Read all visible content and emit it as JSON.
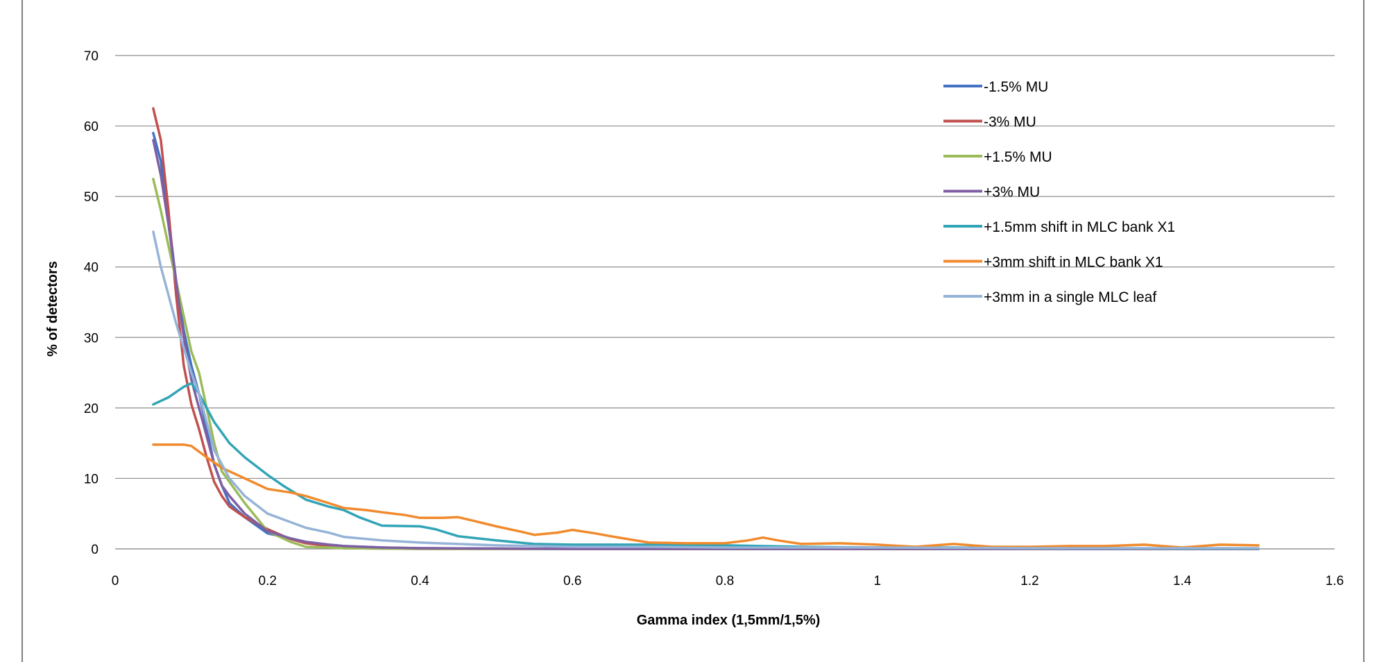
{
  "chart_data": {
    "type": "line",
    "title": "",
    "xlabel": "Gamma index (1,5mm/1,5%)",
    "ylabel": "% of detectors",
    "xlim": [
      0,
      1.6
    ],
    "ylim": [
      0,
      70
    ],
    "xticks": [
      0,
      0.2,
      0.4,
      0.6,
      0.8,
      1,
      1.2,
      1.4,
      1.6
    ],
    "yticks": [
      0,
      10,
      20,
      30,
      40,
      50,
      60,
      70
    ],
    "grid": "horizontal",
    "legend_position": "top-right",
    "series": [
      {
        "name": "-1.5% MU",
        "color": "#4472c4",
        "x": [
          0.05,
          0.06,
          0.07,
          0.08,
          0.09,
          0.1,
          0.11,
          0.12,
          0.13,
          0.14,
          0.15,
          0.17,
          0.2,
          0.23,
          0.25,
          0.28,
          0.3,
          0.35,
          0.4,
          0.5,
          0.6,
          0.8,
          1.0,
          1.2,
          1.5
        ],
        "y": [
          59,
          55,
          47,
          38,
          31,
          26,
          22,
          17,
          12,
          9,
          6.5,
          4.5,
          2.2,
          1.5,
          1.0,
          0.6,
          0.4,
          0.2,
          0.1,
          0.05,
          0,
          0,
          0,
          0,
          0
        ]
      },
      {
        "name": "-3% MU",
        "color": "#c0504d",
        "x": [
          0.05,
          0.06,
          0.07,
          0.08,
          0.09,
          0.1,
          0.11,
          0.12,
          0.13,
          0.14,
          0.15,
          0.17,
          0.2,
          0.23,
          0.25,
          0.28,
          0.3,
          0.35,
          0.4,
          0.5,
          0.6,
          0.8,
          1.0,
          1.2,
          1.5
        ],
        "y": [
          62.5,
          58,
          48,
          36,
          26,
          20.5,
          17,
          13,
          9.5,
          7.5,
          6,
          4.5,
          2.8,
          1.4,
          0.8,
          0.4,
          0.1,
          0.05,
          0,
          0,
          0,
          0,
          0,
          0,
          0
        ]
      },
      {
        "name": "+1.5% MU",
        "color": "#9bbb59",
        "x": [
          0.05,
          0.06,
          0.07,
          0.08,
          0.09,
          0.1,
          0.11,
          0.12,
          0.13,
          0.14,
          0.15,
          0.17,
          0.2,
          0.23,
          0.25,
          0.28,
          0.3,
          0.35,
          0.4,
          0.5,
          0.6,
          0.8,
          1.0,
          1.2,
          1.5
        ],
        "y": [
          52.5,
          48,
          43,
          38,
          33,
          28,
          25,
          20,
          15,
          11,
          9.5,
          6.5,
          2.5,
          1.0,
          0.3,
          0.2,
          0.1,
          0.05,
          0,
          0,
          0,
          0,
          0,
          0,
          0
        ]
      },
      {
        "name": "+3% MU",
        "color": "#7f5fa3",
        "x": [
          0.05,
          0.06,
          0.07,
          0.08,
          0.09,
          0.1,
          0.11,
          0.12,
          0.13,
          0.14,
          0.15,
          0.17,
          0.2,
          0.23,
          0.25,
          0.28,
          0.3,
          0.35,
          0.4,
          0.5,
          0.6,
          0.8,
          1.0,
          1.2,
          1.5
        ],
        "y": [
          58,
          53,
          46,
          38,
          30,
          24,
          20,
          16,
          12,
          9,
          7.5,
          5,
          2.5,
          1.5,
          1.0,
          0.6,
          0.4,
          0.2,
          0.1,
          0.05,
          0,
          0,
          0,
          0,
          0
        ]
      },
      {
        "name": "+1.5mm shift in MLC bank X1",
        "color": "#31a4b6",
        "x": [
          0.05,
          0.07,
          0.09,
          0.1,
          0.11,
          0.12,
          0.13,
          0.15,
          0.17,
          0.2,
          0.22,
          0.25,
          0.28,
          0.3,
          0.32,
          0.35,
          0.4,
          0.42,
          0.45,
          0.5,
          0.55,
          0.6,
          0.7,
          0.8,
          0.9,
          1.0,
          1.1,
          1.2,
          1.3,
          1.4,
          1.5
        ],
        "y": [
          20.5,
          21.5,
          23,
          23.5,
          22,
          20,
          18,
          15,
          13,
          10.5,
          9,
          7,
          6,
          5.5,
          4.5,
          3.3,
          3.2,
          2.8,
          1.8,
          1.2,
          0.7,
          0.6,
          0.6,
          0.5,
          0.3,
          0.2,
          0.2,
          0.1,
          0.1,
          0.05,
          0.05
        ]
      },
      {
        "name": "+3mm shift in MLC bank X1",
        "color": "#f08a2c",
        "x": [
          0.05,
          0.07,
          0.09,
          0.1,
          0.12,
          0.14,
          0.17,
          0.2,
          0.23,
          0.25,
          0.28,
          0.3,
          0.33,
          0.35,
          0.38,
          0.4,
          0.43,
          0.45,
          0.47,
          0.5,
          0.53,
          0.55,
          0.58,
          0.6,
          0.63,
          0.65,
          0.7,
          0.75,
          0.8,
          0.83,
          0.85,
          0.87,
          0.9,
          0.95,
          1.0,
          1.05,
          1.1,
          1.15,
          1.2,
          1.25,
          1.3,
          1.35,
          1.4,
          1.45,
          1.5
        ],
        "y": [
          14.8,
          14.8,
          14.8,
          14.6,
          13,
          11.5,
          10,
          8.5,
          8,
          7.5,
          6.5,
          5.8,
          5.5,
          5.2,
          4.8,
          4.4,
          4.4,
          4.5,
          4,
          3.2,
          2.5,
          2,
          2.3,
          2.7,
          2.2,
          1.8,
          0.9,
          0.8,
          0.8,
          1.2,
          1.6,
          1.2,
          0.7,
          0.8,
          0.6,
          0.3,
          0.7,
          0.3,
          0.3,
          0.4,
          0.4,
          0.6,
          0.2,
          0.6,
          0.5
        ]
      },
      {
        "name": "+3mm in a single MLC leaf",
        "color": "#95b3d7",
        "x": [
          0.05,
          0.06,
          0.07,
          0.08,
          0.09,
          0.1,
          0.11,
          0.12,
          0.13,
          0.15,
          0.17,
          0.2,
          0.23,
          0.25,
          0.28,
          0.3,
          0.35,
          0.4,
          0.45,
          0.5,
          0.55,
          0.6,
          0.7,
          0.8,
          0.9,
          1.0,
          1.2,
          1.5
        ],
        "y": [
          45,
          40,
          36,
          32,
          28.5,
          25,
          22,
          18,
          14,
          10,
          7.5,
          5,
          3.8,
          3,
          2.3,
          1.7,
          1.2,
          0.9,
          0.7,
          0.5,
          0.4,
          0.3,
          0.3,
          0.2,
          0.2,
          0.2,
          0.1,
          0.1
        ]
      }
    ]
  }
}
